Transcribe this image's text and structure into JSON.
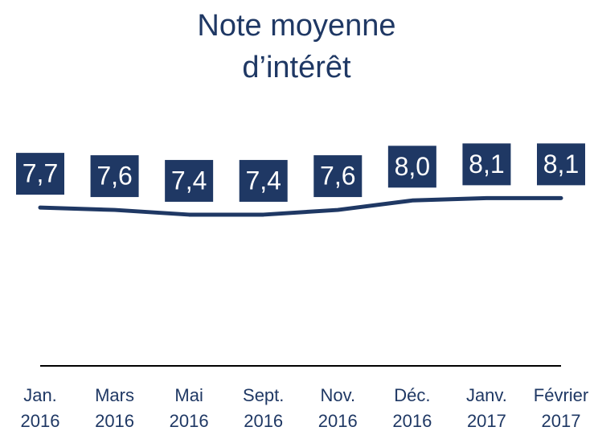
{
  "chart_data": {
    "type": "line",
    "title": "Note moyenne d’intérêt",
    "categories": [
      "Jan. 2016",
      "Mars 2016",
      "Mai 2016",
      "Sept. 2016",
      "Nov. 2016",
      "Déc. 2016",
      "Janv. 2017",
      "Février 2017"
    ],
    "series": [
      {
        "name": "Note moyenne",
        "color": "#1f3864",
        "values": [
          7.7,
          7.6,
          7.4,
          7.4,
          7.6,
          8.0,
          8.1,
          8.1
        ],
        "value_labels": [
          "7,7",
          "7,6",
          "7,4",
          "7,4",
          "7,6",
          "8,0",
          "8,1",
          "8,1"
        ]
      }
    ],
    "ylim": [
      1,
      14
    ]
  }
}
